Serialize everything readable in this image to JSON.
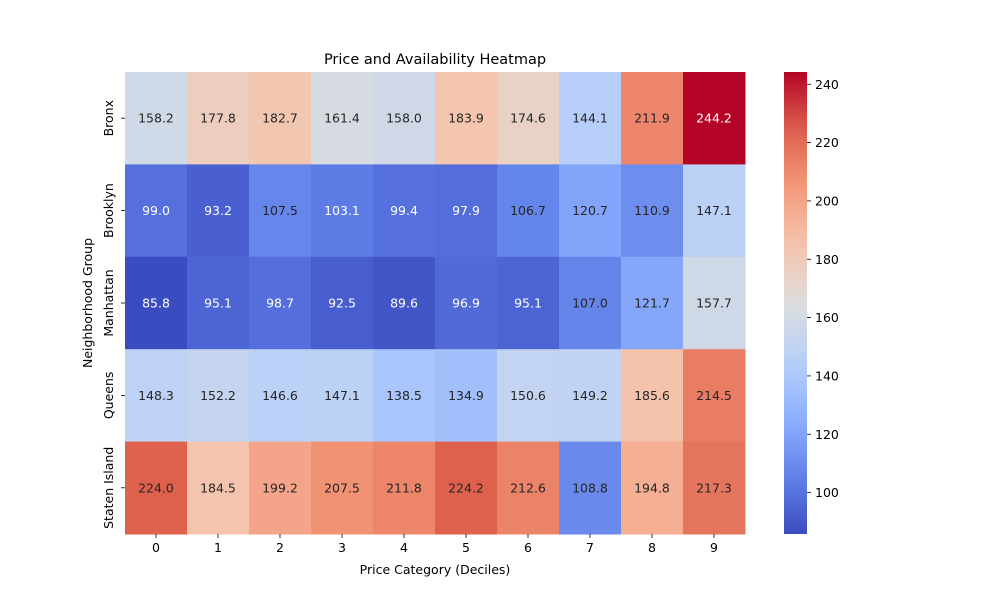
{
  "chart_data": {
    "type": "heatmap",
    "title": "Price and Availability Heatmap",
    "xlabel": "Price Category (Deciles)",
    "ylabel": "Neighborhood Group",
    "x_categories": [
      "0",
      "1",
      "2",
      "3",
      "4",
      "5",
      "6",
      "7",
      "8",
      "9"
    ],
    "y_categories": [
      "Bronx",
      "Brooklyn",
      "Manhattan",
      "Queens",
      "Staten Island"
    ],
    "values": [
      [
        158.2,
        177.8,
        182.7,
        161.4,
        158.0,
        183.9,
        174.6,
        144.1,
        211.9,
        244.2
      ],
      [
        99.0,
        93.2,
        107.5,
        103.1,
        99.4,
        97.9,
        106.7,
        120.7,
        110.9,
        147.1
      ],
      [
        85.8,
        95.1,
        98.7,
        92.5,
        89.6,
        96.9,
        95.1,
        107.0,
        121.7,
        157.7
      ],
      [
        148.3,
        152.2,
        146.6,
        147.1,
        138.5,
        134.9,
        150.6,
        149.2,
        185.6,
        214.5
      ],
      [
        224.0,
        184.5,
        199.2,
        207.5,
        211.8,
        224.2,
        212.6,
        108.8,
        194.8,
        217.3
      ]
    ],
    "colormap": "coolwarm",
    "vmin": 85.8,
    "vmax": 244.2,
    "colorbar_ticks": [
      100,
      120,
      140,
      160,
      180,
      200,
      220,
      240
    ],
    "colorbar_tick_labels": [
      "100",
      "120",
      "140",
      "160",
      "180",
      "200",
      "220",
      "240"
    ]
  }
}
